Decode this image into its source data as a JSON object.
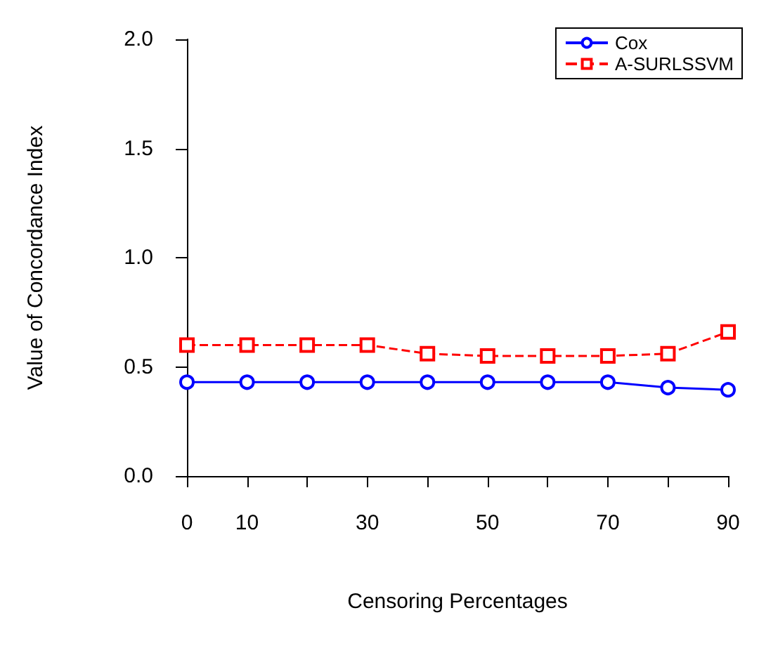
{
  "chart_data": {
    "type": "line",
    "xlabel": "Censoring Percentages",
    "ylabel": "Value of Concordance Index",
    "x": [
      0,
      10,
      20,
      30,
      40,
      50,
      60,
      70,
      80,
      90
    ],
    "series": [
      {
        "name": "Cox",
        "color": "#0000ff",
        "marker": "circle",
        "line_style": "solid",
        "values": [
          0.43,
          0.43,
          0.43,
          0.43,
          0.43,
          0.43,
          0.43,
          0.43,
          0.405,
          0.395
        ]
      },
      {
        "name": "A-SURLSSVM",
        "color": "#ff0000",
        "marker": "square",
        "line_style": "dashed",
        "values": [
          0.6,
          0.6,
          0.6,
          0.6,
          0.56,
          0.55,
          0.55,
          0.55,
          0.56,
          0.66
        ]
      }
    ],
    "xlim": [
      0,
      90
    ],
    "xticks": [
      0,
      10,
      {
        "value": 20,
        "label": null
      },
      30,
      {
        "value": 40,
        "label": null
      },
      50,
      {
        "value": 60,
        "label": null
      },
      70,
      {
        "value": 80,
        "label": null
      },
      90
    ],
    "ylim": [
      0,
      2
    ],
    "yticks": [
      {
        "value": 0,
        "label": "0.0"
      },
      {
        "value": 0.5,
        "label": "0.5"
      },
      {
        "value": 1,
        "label": "1.0"
      },
      {
        "value": 1.5,
        "label": "1.5"
      },
      {
        "value": 2,
        "label": "2.0"
      }
    ],
    "legend": "top right",
    "grid": false
  }
}
